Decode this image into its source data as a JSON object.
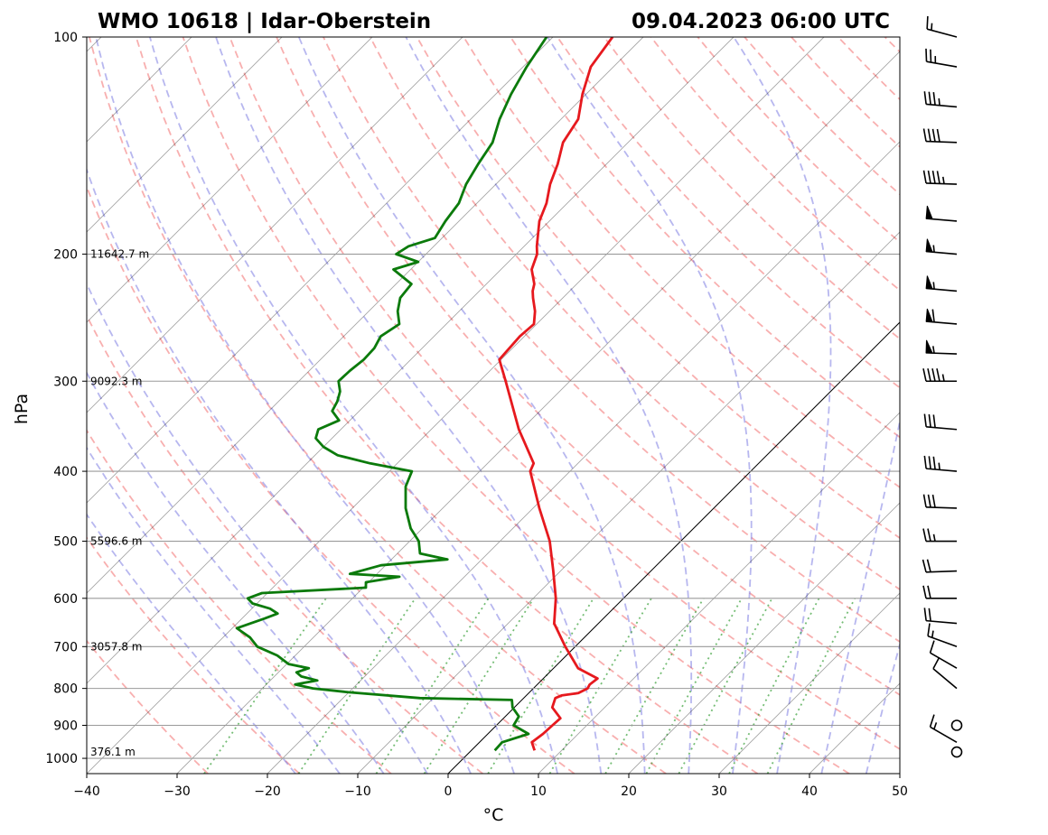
{
  "header": {
    "left": "WMO 10618 | Idar-Oberstein",
    "right": "09.04.2023 06:00 UTC"
  },
  "chart_data": {
    "type": "line",
    "title": "",
    "xlabel": "°C",
    "ylabel": "hPa",
    "xlim": [
      -40,
      50
    ],
    "ylim": [
      1050,
      100
    ],
    "y_scale": "log",
    "skew": "45-degree skewed isotherms",
    "xticks": [
      -40,
      -30,
      -20,
      -10,
      0,
      10,
      20,
      30,
      40,
      50
    ],
    "yticks": [
      1000,
      900,
      800,
      700,
      600,
      500,
      400,
      300,
      200,
      100
    ],
    "height_annotations": [
      {
        "p": 980,
        "label": "376.1 m"
      },
      {
        "p": 700,
        "label": "3057.8 m"
      },
      {
        "p": 500,
        "label": "5596.6 m"
      },
      {
        "p": 300,
        "label": "9092.3 m"
      },
      {
        "p": 200,
        "label": "11642.7 m"
      }
    ],
    "temperature": {
      "color": "#e6191e",
      "points": [
        [
          975,
          7
        ],
        [
          950,
          5.8
        ],
        [
          925,
          6.1
        ],
        [
          900,
          6.2
        ],
        [
          880,
          6.3
        ],
        [
          850,
          4.2
        ],
        [
          825,
          3.5
        ],
        [
          818,
          3.9
        ],
        [
          812,
          5.5
        ],
        [
          800,
          6
        ],
        [
          790,
          5.8
        ],
        [
          775,
          6
        ],
        [
          750,
          2.7
        ],
        [
          700,
          -1.1
        ],
        [
          650,
          -4.9
        ],
        [
          600,
          -7.5
        ],
        [
          550,
          -10.8
        ],
        [
          500,
          -14.5
        ],
        [
          450,
          -19.3
        ],
        [
          400,
          -24.4
        ],
        [
          390,
          -24.9
        ],
        [
          350,
          -30.3
        ],
        [
          300,
          -37.1
        ],
        [
          280,
          -40.2
        ],
        [
          260,
          -40.5
        ],
        [
          250,
          -40.3
        ],
        [
          240,
          -41.6
        ],
        [
          230,
          -43.3
        ],
        [
          225,
          -44.1
        ],
        [
          220,
          -44.7
        ],
        [
          210,
          -46.6
        ],
        [
          200,
          -47.7
        ],
        [
          195,
          -48.6
        ],
        [
          180,
          -51.1
        ],
        [
          170,
          -52.3
        ],
        [
          160,
          -54
        ],
        [
          150,
          -55.4
        ],
        [
          140,
          -57.2
        ],
        [
          130,
          -58.1
        ],
        [
          120,
          -60.4
        ],
        [
          110,
          -62.5
        ],
        [
          100,
          -63.4
        ]
      ]
    },
    "dewpoint": {
      "color": "#0b7a0b",
      "points": [
        [
          975,
          2.6
        ],
        [
          950,
          2.5
        ],
        [
          925,
          4.5
        ],
        [
          900,
          1.9
        ],
        [
          875,
          1.5
        ],
        [
          850,
          -0.2
        ],
        [
          830,
          -1.1
        ],
        [
          825,
          -11.5
        ],
        [
          810,
          -20
        ],
        [
          800,
          -24.4
        ],
        [
          790,
          -26.8
        ],
        [
          780,
          -24.8
        ],
        [
          770,
          -27
        ],
        [
          760,
          -28
        ],
        [
          750,
          -27.1
        ],
        [
          740,
          -29.8
        ],
        [
          720,
          -32
        ],
        [
          700,
          -35.2
        ],
        [
          680,
          -37
        ],
        [
          660,
          -39.5
        ],
        [
          650,
          -38.5
        ],
        [
          640,
          -37.5
        ],
        [
          630,
          -36.6
        ],
        [
          620,
          -38
        ],
        [
          610,
          -40.5
        ],
        [
          600,
          -41.6
        ],
        [
          590,
          -40.6
        ],
        [
          580,
          -29.7
        ],
        [
          570,
          -30.3
        ],
        [
          560,
          -27.2
        ],
        [
          555,
          -33
        ],
        [
          540,
          -30.5
        ],
        [
          530,
          -23.8
        ],
        [
          520,
          -27.5
        ],
        [
          500,
          -29
        ],
        [
          480,
          -31.3
        ],
        [
          450,
          -34.1
        ],
        [
          420,
          -36.5
        ],
        [
          400,
          -37.5
        ],
        [
          390,
          -43
        ],
        [
          380,
          -47.5
        ],
        [
          370,
          -50
        ],
        [
          360,
          -51.8
        ],
        [
          350,
          -52.5
        ],
        [
          340,
          -51.2
        ],
        [
          330,
          -53
        ],
        [
          320,
          -53.5
        ],
        [
          310,
          -54.3
        ],
        [
          300,
          -55.6
        ],
        [
          290,
          -55.5
        ],
        [
          280,
          -55.2
        ],
        [
          270,
          -55.3
        ],
        [
          260,
          -55.9
        ],
        [
          250,
          -55.2
        ],
        [
          240,
          -56.8
        ],
        [
          230,
          -58
        ],
        [
          220,
          -58.3
        ],
        [
          210,
          -61.9
        ],
        [
          205,
          -60
        ],
        [
          200,
          -63.3
        ],
        [
          195,
          -62.8
        ],
        [
          190,
          -60.8
        ],
        [
          180,
          -61.5
        ],
        [
          170,
          -62
        ],
        [
          160,
          -63.3
        ],
        [
          150,
          -64.2
        ],
        [
          140,
          -65
        ],
        [
          130,
          -66.8
        ],
        [
          120,
          -68.3
        ],
        [
          110,
          -69.6
        ],
        [
          100,
          -70.7
        ]
      ]
    },
    "reference_lines": {
      "isotherm_color": "#000000",
      "dry_adiabat_color": "#f26d6d",
      "moist_adiabat_color": "#6f6fe0",
      "mixing_ratio_color": "#2b9a2b",
      "highlighted_isotherm": 0
    },
    "wind_barbs": [
      {
        "p": 980,
        "dir": 0,
        "spd": 0
      },
      {
        "p": 950,
        "dir": 300,
        "spd": 15
      },
      {
        "p": 900,
        "dir": 0,
        "spd": 0
      },
      {
        "p": 800,
        "dir": 310,
        "spd": 10
      },
      {
        "p": 750,
        "dir": 300,
        "spd": 10
      },
      {
        "p": 700,
        "dir": 290,
        "spd": 15
      },
      {
        "p": 650,
        "dir": 275,
        "spd": 20
      },
      {
        "p": 600,
        "dir": 270,
        "spd": 20
      },
      {
        "p": 550,
        "dir": 268,
        "spd": 20
      },
      {
        "p": 500,
        "dir": 270,
        "spd": 25
      },
      {
        "p": 450,
        "dir": 272,
        "spd": 30
      },
      {
        "p": 400,
        "dir": 275,
        "spd": 35
      },
      {
        "p": 350,
        "dir": 275,
        "spd": 30
      },
      {
        "p": 300,
        "dir": 270,
        "spd": 45
      },
      {
        "p": 275,
        "dir": 272,
        "spd": 55
      },
      {
        "p": 250,
        "dir": 275,
        "spd": 60
      },
      {
        "p": 225,
        "dir": 275,
        "spd": 55
      },
      {
        "p": 200,
        "dir": 275,
        "spd": 55
      },
      {
        "p": 180,
        "dir": 275,
        "spd": 50
      },
      {
        "p": 160,
        "dir": 272,
        "spd": 45
      },
      {
        "p": 140,
        "dir": 272,
        "spd": 40
      },
      {
        "p": 125,
        "dir": 275,
        "spd": 35
      },
      {
        "p": 110,
        "dir": 280,
        "spd": 25
      },
      {
        "p": 100,
        "dir": 285,
        "spd": 15
      }
    ]
  }
}
